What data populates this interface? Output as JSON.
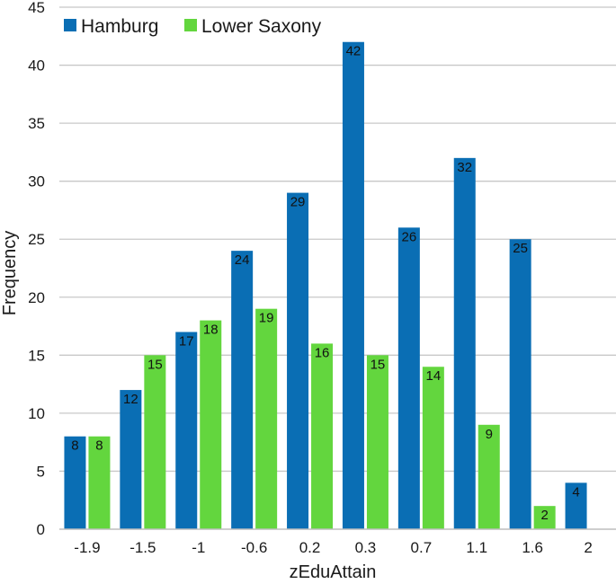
{
  "chart_data": {
    "type": "bar",
    "categories": [
      "-1.9",
      "-1.5",
      "-1",
      "-0.6",
      "0.2",
      "0.3",
      "0.7",
      "1.1",
      "1.6",
      "2"
    ],
    "series": [
      {
        "name": "Hamburg",
        "color": "#0a6eb4",
        "values": [
          8,
          12,
          17,
          24,
          29,
          42,
          26,
          32,
          25,
          4
        ]
      },
      {
        "name": "Lower Saxony",
        "color": "#63d63e",
        "values": [
          8,
          15,
          18,
          19,
          16,
          15,
          14,
          9,
          2,
          0
        ]
      }
    ],
    "xlabel": "zEduAttain",
    "ylabel": "Frequency",
    "ylim": [
      0,
      45
    ],
    "yticks": [
      0,
      5,
      10,
      15,
      20,
      25,
      30,
      35,
      40,
      45
    ],
    "grid": true,
    "legend": "top-left",
    "data_labels": true
  }
}
